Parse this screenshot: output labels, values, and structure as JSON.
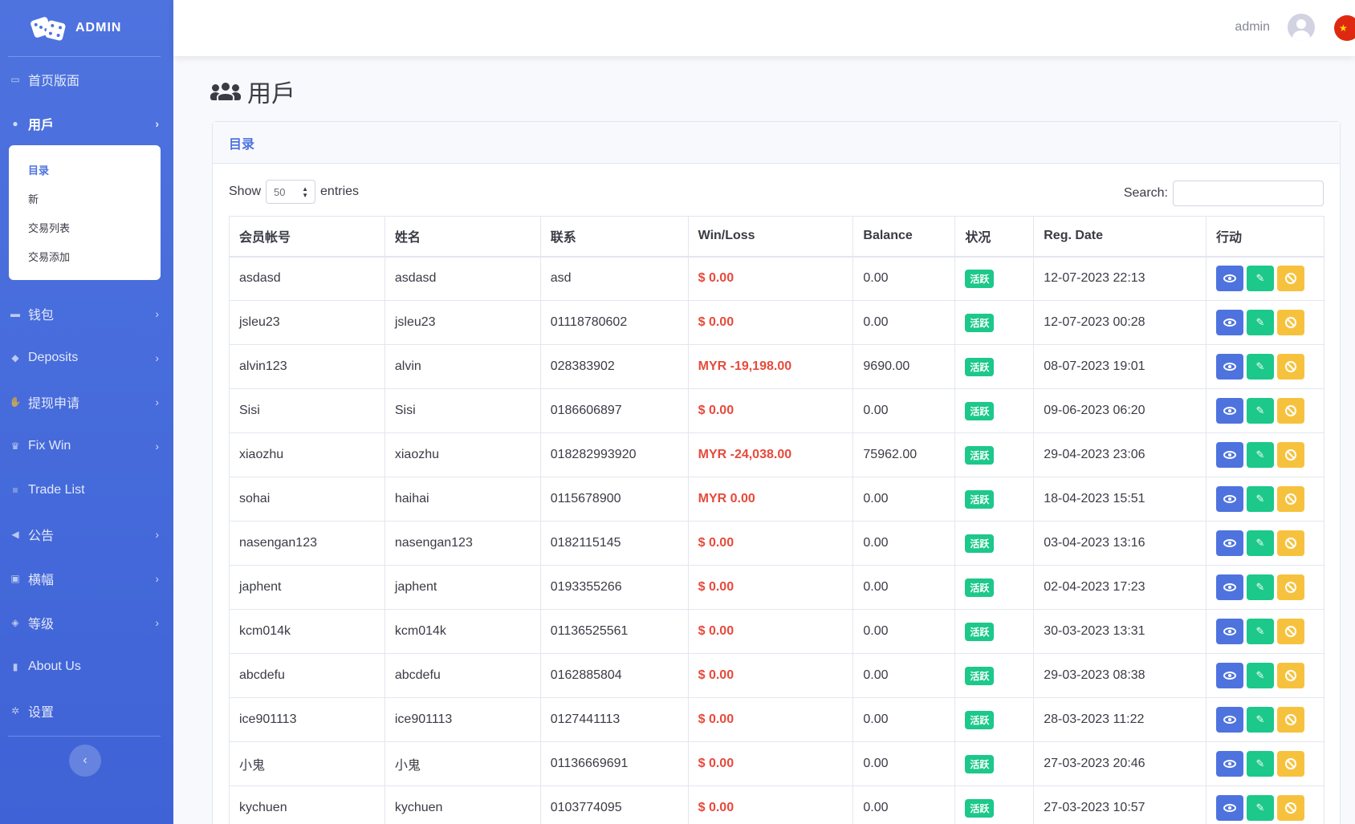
{
  "sidebar": {
    "brand": "ADMIN",
    "items": [
      {
        "label": "首页版面",
        "icon": "desktop-icon"
      },
      {
        "label": "用戶",
        "icon": "users-icon"
      },
      {
        "label": "钱包",
        "icon": "wallet-icon"
      },
      {
        "label": "Deposits",
        "icon": "piggy-bank-icon"
      },
      {
        "label": "提现申请",
        "icon": "hand-coin-icon"
      },
      {
        "label": "Fix Win",
        "icon": "trophy-icon"
      },
      {
        "label": "Trade List",
        "icon": "list-icon"
      },
      {
        "label": "公告",
        "icon": "bullhorn-icon"
      },
      {
        "label": "横幅",
        "icon": "image-icon"
      },
      {
        "label": "等级",
        "icon": "gem-icon"
      },
      {
        "label": "About Us",
        "icon": "building-icon"
      },
      {
        "label": "设置",
        "icon": "gear-icon"
      }
    ],
    "submenu": [
      "目录",
      "新",
      "交易列表",
      "交易添加"
    ]
  },
  "topbar": {
    "user": "admin"
  },
  "page": {
    "title": "用戶"
  },
  "card": {
    "header": "目录",
    "show_label": "Show",
    "entries_value": "50",
    "entries_label": "entries",
    "search_label": "Search:",
    "search_value": ""
  },
  "table": {
    "columns": [
      "会员帐号",
      "姓名",
      "联系",
      "Win/Loss",
      "Balance",
      "状况",
      "Reg. Date",
      "行动"
    ],
    "rows": [
      {
        "account": "asdasd",
        "name": "asdasd",
        "contact": "asd",
        "winloss": "$ 0.00",
        "balance": "0.00",
        "status": "活跃",
        "date": "12-07-2023 22:13"
      },
      {
        "account": "jsleu23",
        "name": "jsleu23",
        "contact": "01118780602",
        "winloss": "$ 0.00",
        "balance": "0.00",
        "status": "活跃",
        "date": "12-07-2023 00:28"
      },
      {
        "account": "alvin123",
        "name": "alvin",
        "contact": "028383902",
        "winloss": "MYR -19,198.00",
        "balance": "9690.00",
        "status": "活跃",
        "date": "08-07-2023 19:01"
      },
      {
        "account": "Sisi",
        "name": "Sisi",
        "contact": "0186606897",
        "winloss": "$ 0.00",
        "balance": "0.00",
        "status": "活跃",
        "date": "09-06-2023 06:20"
      },
      {
        "account": "xiaozhu",
        "name": "xiaozhu",
        "contact": "018282993920",
        "winloss": "MYR -24,038.00",
        "balance": "75962.00",
        "status": "活跃",
        "date": "29-04-2023 23:06"
      },
      {
        "account": "sohai",
        "name": "haihai",
        "contact": "0115678900",
        "winloss": "MYR 0.00",
        "balance": "0.00",
        "status": "活跃",
        "date": "18-04-2023 15:51"
      },
      {
        "account": "nasengan123",
        "name": "nasengan123",
        "contact": "0182115145",
        "winloss": "$ 0.00",
        "balance": "0.00",
        "status": "活跃",
        "date": "03-04-2023 13:16"
      },
      {
        "account": "japhent",
        "name": "japhent",
        "contact": "0193355266",
        "winloss": "$ 0.00",
        "balance": "0.00",
        "status": "活跃",
        "date": "02-04-2023 17:23"
      },
      {
        "account": "kcm014k",
        "name": "kcm014k",
        "contact": "01136525561",
        "winloss": "$ 0.00",
        "balance": "0.00",
        "status": "活跃",
        "date": "30-03-2023 13:31"
      },
      {
        "account": "abcdefu",
        "name": "abcdefu",
        "contact": "0162885804",
        "winloss": "$ 0.00",
        "balance": "0.00",
        "status": "活跃",
        "date": "29-03-2023 08:38"
      },
      {
        "account": "ice901113",
        "name": "ice901113",
        "contact": "0127441113",
        "winloss": "$ 0.00",
        "balance": "0.00",
        "status": "活跃",
        "date": "28-03-2023 11:22"
      },
      {
        "account": "小鬼",
        "name": "小鬼",
        "contact": "01136669691",
        "winloss": "$ 0.00",
        "balance": "0.00",
        "status": "活跃",
        "date": "27-03-2023 20:46"
      },
      {
        "account": "kychuen",
        "name": "kychuen",
        "contact": "0103774095",
        "winloss": "$ 0.00",
        "balance": "0.00",
        "status": "活跃",
        "date": "27-03-2023 10:57"
      }
    ]
  },
  "colors": {
    "primary": "#4e73df",
    "success": "#1cc88a",
    "warning": "#f6c23e",
    "danger": "#e74a3b"
  }
}
